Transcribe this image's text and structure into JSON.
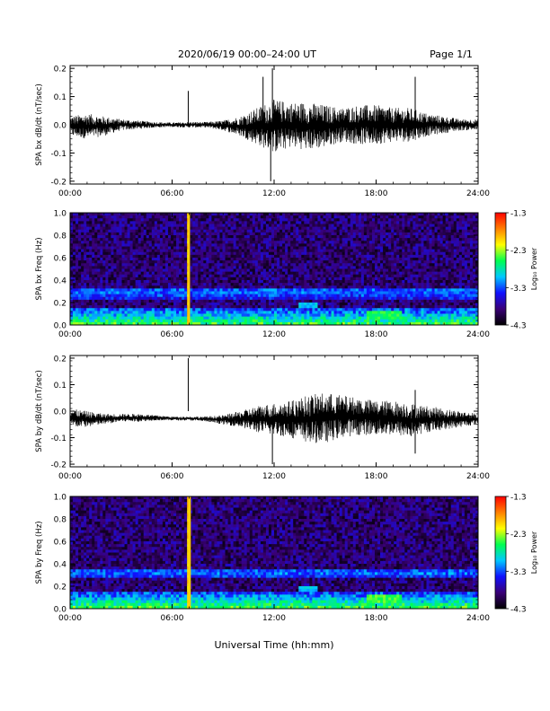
{
  "header": {
    "date_text": "2020/06/19  00:00–24:00 UT",
    "page_text": "Page 1/1"
  },
  "xaxis_label": "Universal Time (hh:mm)",
  "colorbar": {
    "label": "Log₁₀ Power",
    "ticks": [
      -1.3,
      -2.3,
      -3.3,
      -4.3
    ],
    "tick_labels": [
      "-1.3",
      "-2.3",
      "-3.3",
      "-4.3"
    ],
    "colormap": [
      "#000000",
      "#3a0077",
      "#1010ff",
      "#00c8ff",
      "#00ff50",
      "#ffff00",
      "#ff8000",
      "#ff0000"
    ]
  },
  "chart_data": [
    {
      "type": "line",
      "ylabel": "SPA bx dB/dt (nT/sec)",
      "xlim": [
        0,
        24
      ],
      "ylim": [
        -0.21,
        0.21
      ],
      "xticks": [
        "00:00",
        "06:00",
        "12:00",
        "18:00",
        "24:00"
      ],
      "yticks": [
        "0.2",
        "0.1",
        "0.0",
        "-0.1",
        "-0.2"
      ],
      "ytick_values": [
        0.2,
        0.1,
        0.0,
        -0.1,
        -0.2
      ],
      "envelope": {
        "x": [
          0,
          1,
          2,
          3,
          4,
          5,
          6,
          7,
          8,
          9,
          10,
          11,
          12,
          13,
          14,
          15,
          16,
          17,
          18,
          19,
          20,
          21,
          22,
          23,
          24
        ],
        "ymax": [
          0.03,
          0.04,
          0.03,
          0.02,
          0.015,
          0.01,
          0.008,
          0.01,
          0.01,
          0.015,
          0.03,
          0.06,
          0.09,
          0.08,
          0.08,
          0.07,
          0.06,
          0.07,
          0.07,
          0.06,
          0.06,
          0.04,
          0.03,
          0.02,
          0.02
        ],
        "ymin": [
          -0.04,
          -0.05,
          -0.04,
          -0.02,
          -0.015,
          -0.01,
          -0.008,
          -0.01,
          -0.01,
          -0.02,
          -0.04,
          -0.07,
          -0.1,
          -0.08,
          -0.09,
          -0.08,
          -0.06,
          -0.07,
          -0.07,
          -0.06,
          -0.06,
          -0.04,
          -0.03,
          -0.02,
          -0.02
        ]
      },
      "spikes": [
        {
          "x": 6.95,
          "y": 0.12
        },
        {
          "x": 11.35,
          "y": 0.17
        },
        {
          "x": 11.8,
          "y": -0.2
        },
        {
          "x": 11.9,
          "y": 0.2
        },
        {
          "x": 20.3,
          "y": 0.17
        }
      ]
    },
    {
      "type": "heatmap",
      "ylabel": "SPA bx Freq (Hz)",
      "xlim": [
        0,
        24
      ],
      "ylim": [
        0,
        1.0
      ],
      "xticks": [
        "00:00",
        "06:00",
        "12:00",
        "18:00",
        "24:00"
      ],
      "yticks": [
        "1.0",
        "0.8",
        "0.6",
        "0.4",
        "0.2",
        "0.0"
      ],
      "ytick_values": [
        1.0,
        0.8,
        0.6,
        0.4,
        0.2,
        0.0
      ],
      "background_log_power": -3.9,
      "bands": [
        {
          "f": 0.3,
          "log_power": -3.2
        },
        {
          "f": 0.27,
          "log_power": -3.3
        },
        {
          "f": 0.0,
          "log_power": -2.8
        }
      ],
      "features": [
        {
          "t0": 6.95,
          "t1": 7.05,
          "f0": 0.0,
          "f1": 1.0,
          "log_power": -2.0
        },
        {
          "t0": 17.5,
          "t1": 19.5,
          "f0": 0.05,
          "f1": 0.12,
          "log_power": -2.6
        },
        {
          "t0": 13.5,
          "t1": 14.5,
          "f0": 0.15,
          "f1": 0.2,
          "log_power": -3.0
        }
      ]
    },
    {
      "type": "line",
      "ylabel": "SPA by dB/dt (nT/sec)",
      "xlim": [
        0,
        24
      ],
      "ylim": [
        -0.21,
        0.21
      ],
      "xticks": [
        "00:00",
        "06:00",
        "12:00",
        "18:00",
        "24:00"
      ],
      "yticks": [
        "0.2",
        "0.1",
        "0.0",
        "-0.1",
        "-0.2"
      ],
      "ytick_values": [
        0.2,
        0.1,
        0.0,
        -0.1,
        -0.2
      ],
      "envelope": {
        "x": [
          0,
          1,
          2,
          3,
          4,
          5,
          6,
          7,
          8,
          9,
          10,
          11,
          12,
          13,
          14,
          15,
          16,
          17,
          18,
          19,
          20,
          21,
          22,
          23,
          24
        ],
        "ymax": [
          0.01,
          0.0,
          -0.01,
          -0.01,
          -0.01,
          -0.015,
          -0.02,
          -0.02,
          -0.02,
          -0.015,
          0.0,
          0.02,
          0.03,
          0.04,
          0.06,
          0.07,
          0.06,
          0.05,
          0.04,
          0.04,
          0.03,
          0.02,
          0.01,
          0.0,
          -0.01
        ],
        "ymin": [
          -0.06,
          -0.06,
          -0.05,
          -0.04,
          -0.04,
          -0.035,
          -0.035,
          -0.035,
          -0.04,
          -0.05,
          -0.06,
          -0.08,
          -0.09,
          -0.1,
          -0.12,
          -0.12,
          -0.1,
          -0.09,
          -0.09,
          -0.09,
          -0.1,
          -0.08,
          -0.07,
          -0.06,
          -0.05
        ]
      },
      "spikes": [
        {
          "x": 6.95,
          "y": 0.2
        },
        {
          "x": 11.9,
          "y": -0.2
        },
        {
          "x": 20.3,
          "y": 0.08
        },
        {
          "x": 20.3,
          "y": -0.16
        }
      ]
    },
    {
      "type": "heatmap",
      "ylabel": "SPA by Freq (Hz)",
      "xlim": [
        0,
        24
      ],
      "ylim": [
        0,
        1.0
      ],
      "xticks": [
        "00:00",
        "06:00",
        "12:00",
        "18:00",
        "24:00"
      ],
      "yticks": [
        "1.0",
        "0.8",
        "0.6",
        "0.4",
        "0.2",
        "0.0"
      ],
      "ytick_values": [
        1.0,
        0.8,
        0.6,
        0.4,
        0.2,
        0.0
      ],
      "background_log_power": -3.9,
      "bands": [
        {
          "f": 0.32,
          "log_power": -3.2
        },
        {
          "f": 0.0,
          "log_power": -2.7
        }
      ],
      "features": [
        {
          "t0": 6.95,
          "t1": 7.1,
          "f0": 0.0,
          "f1": 1.0,
          "log_power": -2.0
        },
        {
          "t0": 17.5,
          "t1": 19.5,
          "f0": 0.05,
          "f1": 0.12,
          "log_power": -2.5
        },
        {
          "t0": 13.5,
          "t1": 14.5,
          "f0": 0.15,
          "f1": 0.2,
          "log_power": -3.0
        }
      ]
    }
  ]
}
